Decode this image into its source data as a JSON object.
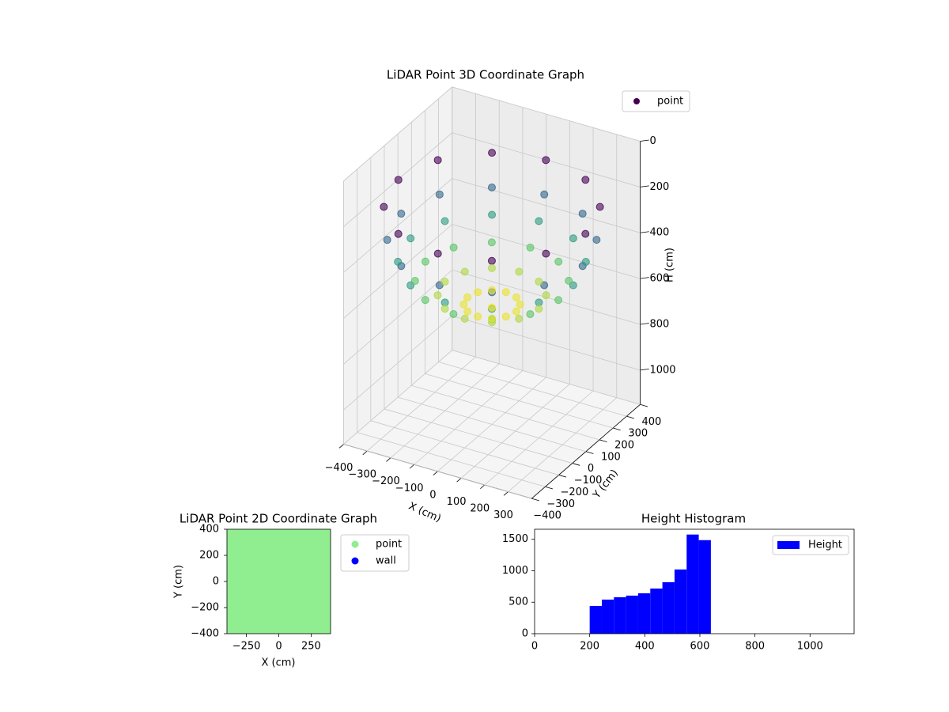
{
  "chart_data": [
    {
      "type": "scatter3d",
      "title": "LiDAR Point 3D Coordinate Graph",
      "xlabel": "X (cm)",
      "ylabel": "Y (cm)",
      "zlabel": "H (cm)",
      "xlim": [
        -400,
        400
      ],
      "ylim": [
        -400,
        400
      ],
      "zlim": [
        0,
        1150
      ],
      "zinvert": true,
      "xticks": [
        {
          "value": -400,
          "label": "−400"
        },
        {
          "value": -300,
          "label": "−300"
        },
        {
          "value": -200,
          "label": "−200"
        },
        {
          "value": -100,
          "label": "−100"
        },
        0,
        100,
        200,
        300
      ],
      "yticks": [
        {
          "value": -400,
          "label": "−400"
        },
        {
          "value": -300,
          "label": "−300"
        },
        {
          "value": -200,
          "label": "−200"
        },
        {
          "value": -100,
          "label": "−100"
        },
        0,
        100,
        200,
        300,
        400
      ],
      "zticks": [
        0,
        200,
        400,
        600,
        800,
        1000
      ],
      "grid": true,
      "colormap": "viridis",
      "legend": "upper right",
      "series": [
        {
          "name": "point",
          "color": "#440154",
          "x": [
            398,
            345,
            199,
            0,
            -199,
            -345,
            -398,
            -345,
            -199,
            0,
            199,
            345,
            386,
            334,
            193,
            0,
            -193,
            -334,
            -386,
            -334,
            -193,
            0,
            193,
            334,
            346,
            300,
            173,
            0,
            -173,
            -300,
            -346,
            -300,
            -173,
            0,
            173,
            300,
            283,
            245,
            142,
            0,
            -142,
            -245,
            -283,
            -245,
            -142,
            0,
            142,
            245,
            200,
            173,
            100,
            0,
            -100,
            -173,
            -200,
            -173,
            -100,
            0,
            100,
            173,
            104,
            90,
            52,
            0,
            -52,
            -90,
            -104,
            -90,
            -52,
            0,
            52,
            90,
            0
          ],
          "y": [
            0,
            199,
            345,
            398,
            345,
            199,
            0,
            -199,
            -345,
            -398,
            -345,
            -199,
            0,
            193,
            334,
            386,
            334,
            193,
            0,
            -193,
            -334,
            -386,
            -334,
            -193,
            0,
            173,
            300,
            346,
            300,
            173,
            0,
            -173,
            -300,
            -346,
            -300,
            -173,
            0,
            142,
            245,
            283,
            245,
            142,
            0,
            -142,
            -245,
            -283,
            -245,
            -142,
            0,
            100,
            173,
            200,
            173,
            100,
            0,
            -100,
            -173,
            -200,
            -173,
            -100,
            0,
            52,
            90,
            104,
            90,
            52,
            0,
            -52,
            -90,
            -104,
            -90,
            -52,
            0
          ],
          "z": [
            200,
            200,
            200,
            200,
            200,
            200,
            200,
            200,
            200,
            200,
            200,
            200,
            344,
            344,
            344,
            344,
            344,
            344,
            344,
            344,
            344,
            344,
            344,
            344,
            440,
            440,
            440,
            440,
            440,
            440,
            440,
            440,
            440,
            440,
            440,
            440,
            523,
            523,
            523,
            523,
            523,
            523,
            523,
            523,
            523,
            523,
            523,
            523,
            586,
            586,
            586,
            586,
            586,
            586,
            586,
            586,
            586,
            586,
            586,
            586,
            626,
            626,
            626,
            626,
            626,
            626,
            626,
            626,
            626,
            626,
            626,
            626,
            640
          ]
        }
      ]
    },
    {
      "type": "scatter",
      "title": "LiDAR Point 2D Coordinate Graph",
      "xlabel": "X (cm)",
      "ylabel": "Y (cm)",
      "xlim": [
        -400,
        400
      ],
      "ylim": [
        -400,
        400
      ],
      "xticks": [
        {
          "value": -250,
          "label": "−250"
        },
        0,
        250
      ],
      "yticks": [
        {
          "value": -400,
          "label": "−400"
        },
        {
          "value": -200,
          "label": "−200"
        },
        0,
        200,
        400
      ],
      "legend": "outside upper right",
      "series": [
        {
          "name": "point",
          "color": "#90ee90",
          "x": [
            -400,
            -400,
            -400,
            -400,
            -400,
            -400,
            -400,
            -400,
            -400,
            -300,
            -300,
            -300,
            -300,
            -300,
            -300,
            -300,
            -300,
            -300,
            -200,
            -200,
            -200,
            -200,
            -200,
            -200,
            -200,
            -200,
            -200,
            -100,
            -100,
            -100,
            -100,
            -100,
            -100,
            -100,
            -100,
            -100,
            0,
            0,
            0,
            0,
            0,
            0,
            0,
            0,
            0,
            100,
            100,
            100,
            100,
            100,
            100,
            100,
            100,
            100,
            200,
            200,
            200,
            200,
            200,
            200,
            200,
            200,
            200,
            300,
            300,
            300,
            300,
            300,
            300,
            300,
            300,
            300,
            400,
            400,
            400,
            400,
            400,
            400,
            400,
            400,
            400
          ],
          "y": [
            -400,
            -300,
            -200,
            -100,
            0,
            100,
            200,
            300,
            400,
            -400,
            -300,
            -200,
            -100,
            0,
            100,
            200,
            300,
            400,
            -400,
            -300,
            -200,
            -100,
            0,
            100,
            200,
            300,
            400,
            -400,
            -300,
            -200,
            -100,
            0,
            100,
            200,
            300,
            400,
            -400,
            -300,
            -200,
            -100,
            0,
            100,
            200,
            300,
            400,
            -400,
            -300,
            -200,
            -100,
            0,
            100,
            200,
            300,
            400,
            -400,
            -300,
            -200,
            -100,
            0,
            100,
            200,
            300,
            400,
            -400,
            -300,
            -200,
            -100,
            0,
            100,
            200,
            300,
            400,
            -400,
            -300,
            -200,
            -100,
            0,
            100,
            200,
            300,
            400
          ]
        },
        {
          "name": "wall",
          "color": "#0000ff",
          "x": [],
          "y": []
        }
      ]
    },
    {
      "type": "histogram",
      "title": "Height Histogram",
      "name": "Height",
      "color": "#0000ff",
      "bins": [
        200,
        244,
        288,
        332,
        376,
        420,
        464,
        508,
        552,
        596,
        640
      ],
      "values": [
        441,
        542,
        580,
        605,
        643,
        718,
        819,
        1021,
        1576,
        1487
      ],
      "xlim": [
        0,
        1160
      ],
      "ylim": [
        0,
        1660
      ],
      "xticks": [
        0,
        200,
        400,
        600,
        800,
        1000
      ],
      "yticks": [
        0,
        500,
        1000,
        1500
      ],
      "legend": "upper right"
    }
  ]
}
